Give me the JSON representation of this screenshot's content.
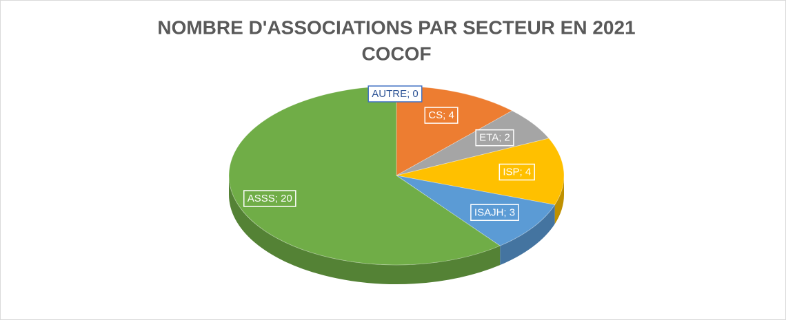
{
  "chart_data": {
    "type": "pie3d",
    "title": [
      "NOMBRE D'ASSOCIATIONS PAR SECTEUR EN 2021",
      "COCOF"
    ],
    "categories": [
      "AUTRE",
      "CS",
      "ETA",
      "ISP",
      "ISAJH",
      "ASSS"
    ],
    "values": [
      0,
      4,
      2,
      4,
      3,
      20
    ],
    "label_separator": "; ",
    "colors": [
      "#4472c4",
      "#ed7d31",
      "#a5a5a5",
      "#ffc000",
      "#5b9bd5",
      "#70ad47"
    ]
  }
}
